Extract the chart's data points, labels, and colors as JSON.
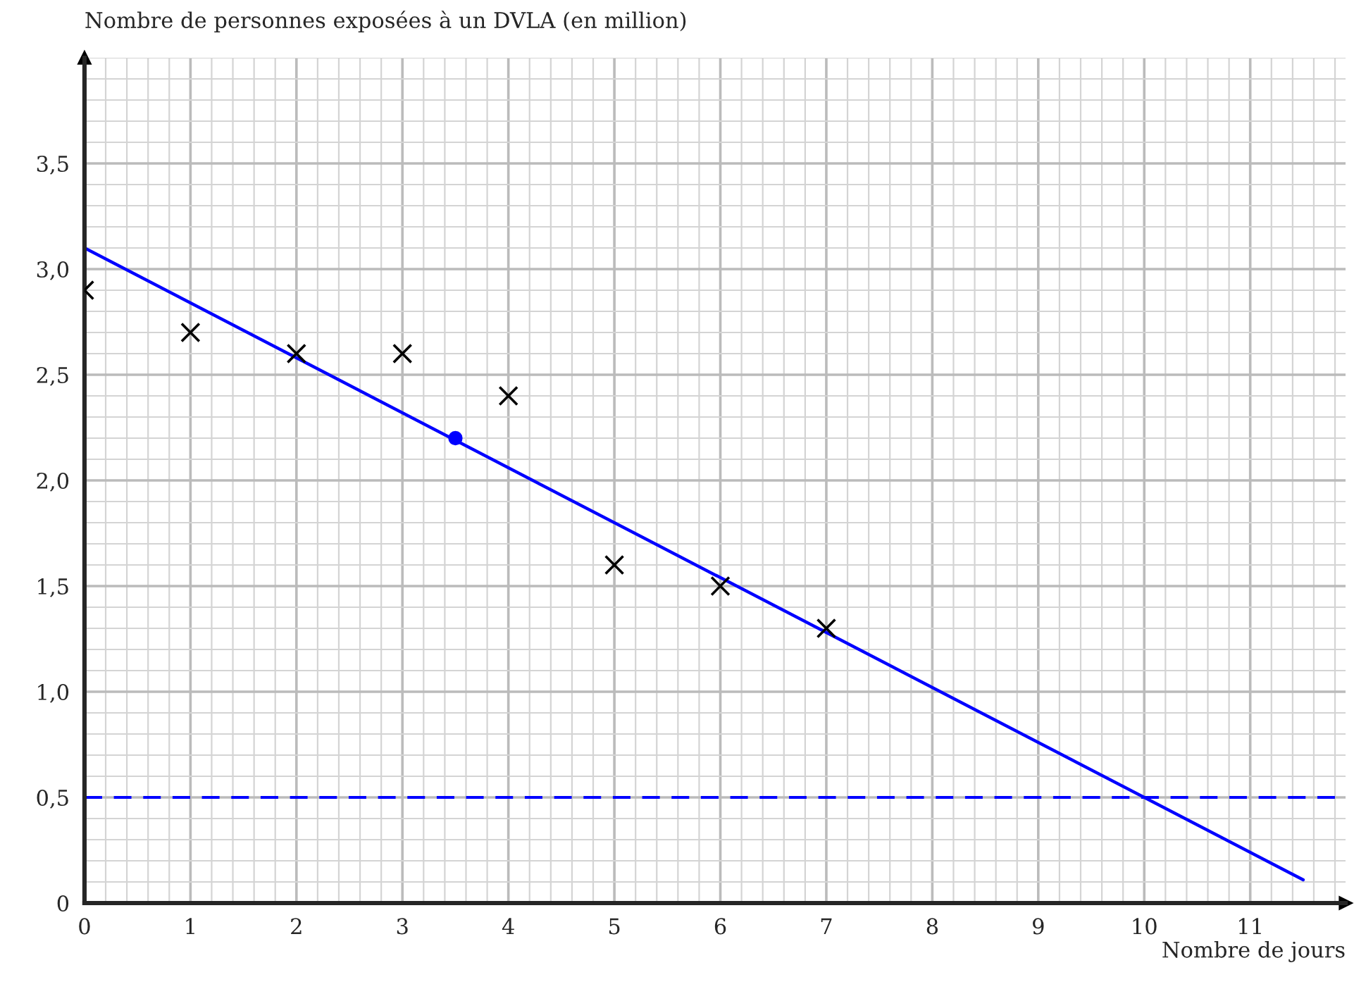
{
  "chart_data": {
    "type": "scatter",
    "xlabel": "Nombre de jours",
    "ylabel": "Nombre de personnes exposées à un DVLA (en million)",
    "xlim": [
      0,
      11.9
    ],
    "ylim": [
      0,
      4.0
    ],
    "xticks": [
      0,
      1,
      2,
      3,
      4,
      5,
      6,
      7,
      8,
      9,
      10,
      11
    ],
    "yticks": [
      {
        "value": 0,
        "label": "0"
      },
      {
        "value": 0.5,
        "label": "0,5"
      },
      {
        "value": 1.0,
        "label": "1,0"
      },
      {
        "value": 1.5,
        "label": "1,5"
      },
      {
        "value": 2.0,
        "label": "2,0"
      },
      {
        "value": 2.5,
        "label": "2,5"
      },
      {
        "value": 3.0,
        "label": "3,0"
      },
      {
        "value": 3.5,
        "label": "3,5"
      }
    ],
    "grid": true,
    "series": [
      {
        "marker": "cross",
        "color": "#000000",
        "x": [
          0,
          1,
          2,
          3,
          4,
          5,
          6,
          7
        ],
        "values": [
          2.9,
          2.7,
          2.6,
          2.6,
          2.4,
          1.6,
          1.5,
          1.3
        ]
      },
      {
        "type": "line",
        "marker": "none",
        "line_style": "solid",
        "color": "#0000ff",
        "x": [
          0,
          11.5
        ],
        "values": [
          3.1,
          0.11
        ]
      },
      {
        "marker": "circle",
        "color": "#0000ff",
        "x": [
          3.5
        ],
        "values": [
          2.2
        ]
      }
    ],
    "ref_lines": [
      {
        "axis": "y",
        "value": 0.5,
        "label": null,
        "color": "#0000ff",
        "line_style": "dashed"
      }
    ]
  }
}
